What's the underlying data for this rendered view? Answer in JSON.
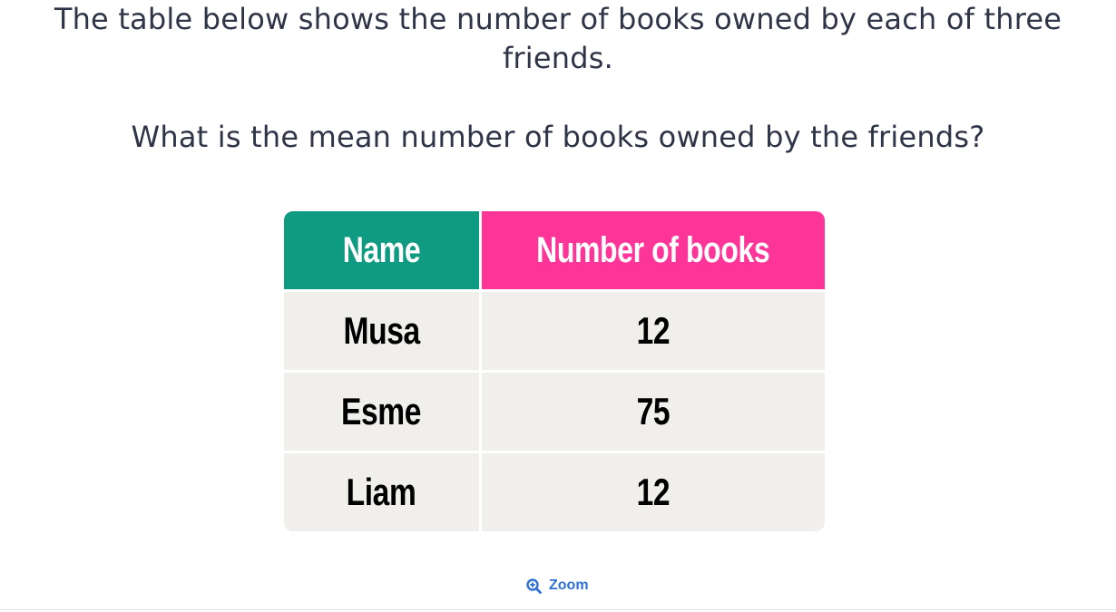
{
  "question": {
    "line1": "The table below shows the number of books owned by each of three friends.",
    "line2": "What is the mean number of books owned by the friends?"
  },
  "table": {
    "headers": [
      "Name",
      "Number of books"
    ],
    "rows": [
      [
        "Musa",
        "12"
      ],
      [
        "Esme",
        "75"
      ],
      [
        "Liam",
        "12"
      ]
    ],
    "header_colors": [
      "#0f9b82",
      "#fe3599"
    ]
  },
  "zoom": {
    "label": "Zoom",
    "icon": "zoom-in-icon"
  }
}
